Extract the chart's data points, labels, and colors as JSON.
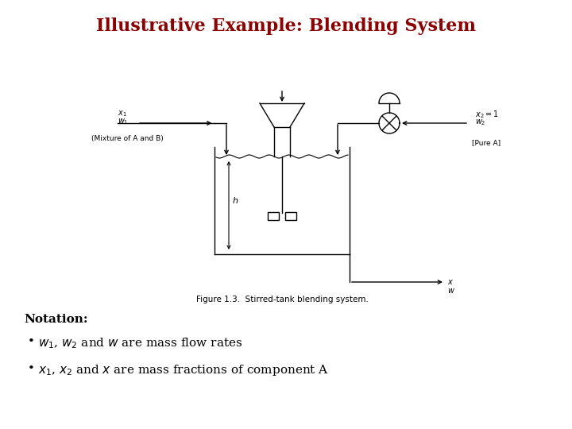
{
  "title": "Illustrative Example: Blending System",
  "title_color": "#8B0000",
  "title_fontsize": 16,
  "bg_color": "#ffffff",
  "notation_label": "Notation:",
  "fig_caption": "Figure 1.3.  Stirred-tank blending system.",
  "label_mixture": "(Mixture of A and B)",
  "label_pureA": "[Pure A]"
}
